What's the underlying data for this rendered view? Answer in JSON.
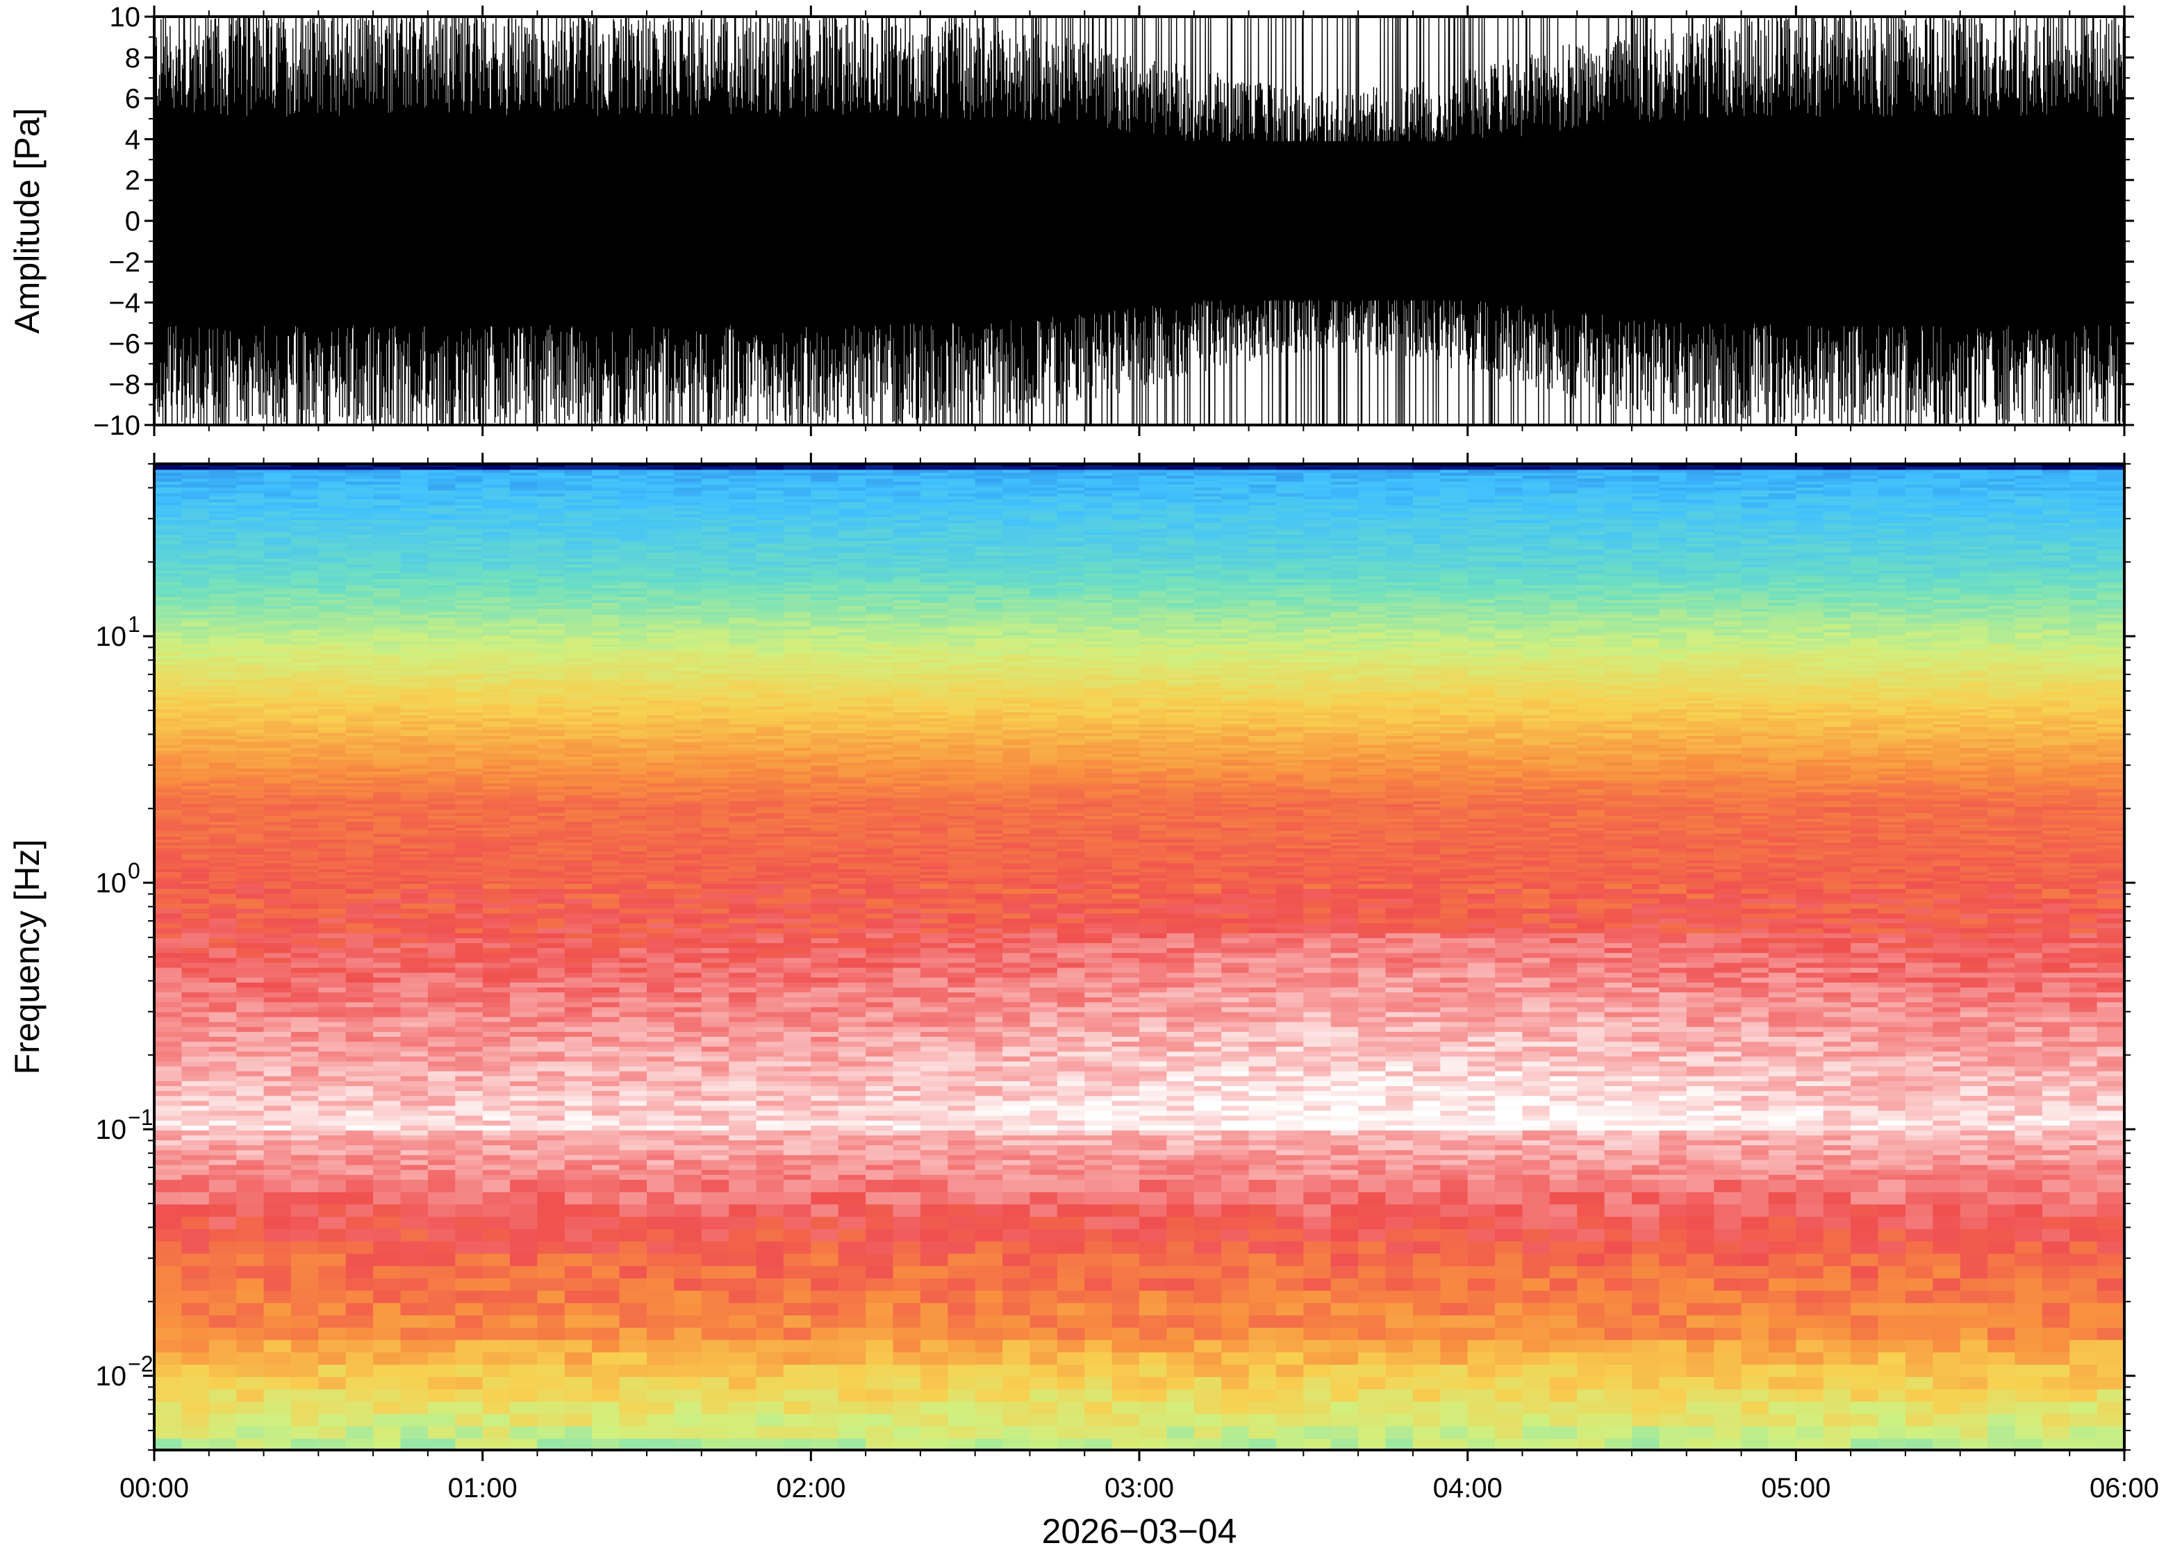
{
  "chart_data": [
    {
      "type": "line",
      "panel": "waveform",
      "ylabel": "Amplitude [Pa]",
      "ylim": [
        -10,
        10
      ],
      "yticks": [
        -10,
        -8,
        -6,
        -4,
        -2,
        0,
        2,
        4,
        6,
        8,
        10
      ],
      "ytick_labels": [
        "−10",
        "−8",
        "−6",
        "−4",
        "−2",
        "0",
        "2",
        "4",
        "6",
        "8",
        "10"
      ],
      "xlim": [
        "00:00",
        "06:00"
      ],
      "grid": false,
      "color": "#000000",
      "envelope_typical": 6,
      "envelope_peak": 10
    },
    {
      "type": "heatmap",
      "panel": "spectrogram",
      "ylabel": "Frequency [Hz]",
      "yscale": "log",
      "ylim": [
        0.005,
        50
      ],
      "yticks": [
        {
          "value": 0.01,
          "base": "10",
          "exp": "−2"
        },
        {
          "value": 0.1,
          "base": "10",
          "exp": "−1"
        },
        {
          "value": 1,
          "base": "10",
          "exp": "0"
        },
        {
          "value": 10,
          "base": "10",
          "exp": "1"
        }
      ],
      "xlabel": "2026−03−04",
      "xticks": [
        "00:00",
        "01:00",
        "02:00",
        "03:00",
        "04:00",
        "05:00",
        "06:00"
      ],
      "xlim": [
        "00:00",
        "06:00"
      ],
      "grid": false,
      "colormap": [
        "#000064",
        "#2060d0",
        "#40c0ff",
        "#70e0c0",
        "#d0f080",
        "#f8d050",
        "#f89040",
        "#f05050",
        "#f8a0a0",
        "#ffffff"
      ]
    }
  ]
}
